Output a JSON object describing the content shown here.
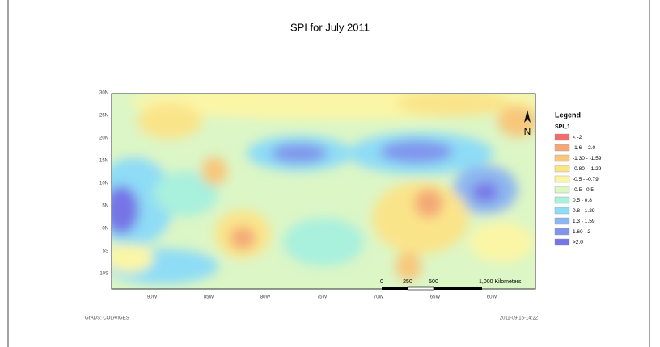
{
  "header": {
    "title": "SPI  for July 2011"
  },
  "map": {
    "lat_labels": [
      "30N",
      "25N",
      "20N",
      "15N",
      "10N",
      "5N",
      "0N",
      "5S",
      "10S"
    ],
    "lon_labels": [
      "90W",
      "85W",
      "80W",
      "75W",
      "70W",
      "65W",
      "60W"
    ]
  },
  "legend": {
    "title": "Legend",
    "field": "SPI_1",
    "items": [
      {
        "label": "< -2",
        "color": "#f26b6b"
      },
      {
        "label": "-1.6 - -2.0",
        "color": "#f4a877"
      },
      {
        "label": "-1.30 - -1.59",
        "color": "#f7c77c"
      },
      {
        "label": "-0.80 - -1.29",
        "color": "#fae48a"
      },
      {
        "label": "-0.5 - -0.79",
        "color": "#fbf6a6"
      },
      {
        "label": "-0.5 - 0.5",
        "color": "#dcf6c6"
      },
      {
        "label": "0.5 - 0.8",
        "color": "#a9f0dd"
      },
      {
        "label": "0.8 - 1.29",
        "color": "#8edcf6"
      },
      {
        "label": "1.3 - 1.59",
        "color": "#8db6f0"
      },
      {
        "label": "1.60 - 2",
        "color": "#8094ec"
      },
      {
        "label": ">2.0",
        "color": "#7775e6"
      }
    ]
  },
  "scale_bar": {
    "labels": [
      "0",
      "250",
      "500",
      "1,000 Kilometers"
    ]
  },
  "north_arrow": "N",
  "footer": {
    "left": "GrADS: COLA/IGES",
    "right": "2011-09-15-14:22"
  }
}
